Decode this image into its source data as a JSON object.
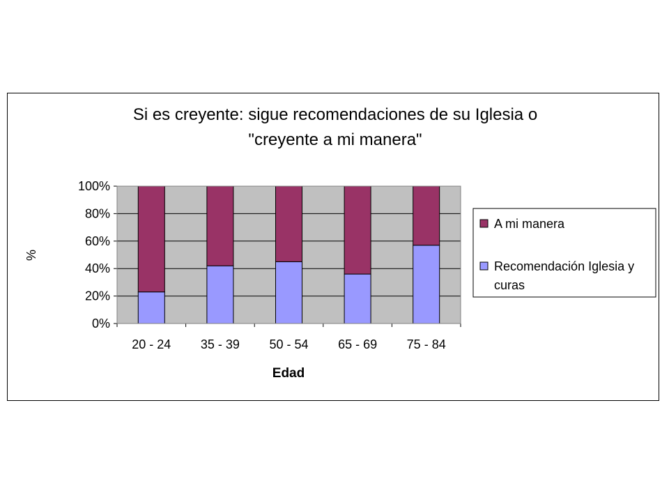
{
  "chart_data": {
    "type": "bar",
    "stacked": true,
    "percent": true,
    "title": [
      "Si es creyente: sigue recomendaciones de su Iglesia o",
      "\"creyente a mi manera\""
    ],
    "xlabel": "Edad",
    "ylabel": "%",
    "categories": [
      "20 - 24",
      "35 - 39",
      "50 - 54",
      "65 - 69",
      "75 - 84"
    ],
    "series": [
      {
        "name": "Recomendación Iglesia y curas",
        "color": "#9999ff",
        "values": [
          23,
          42,
          45,
          36,
          57
        ]
      },
      {
        "name": "A mi manera",
        "color": "#993366",
        "values": [
          77,
          58,
          55,
          64,
          43
        ]
      }
    ],
    "y_ticks": [
      "0%",
      "20%",
      "40%",
      "60%",
      "80%",
      "100%"
    ],
    "ylim": [
      0,
      100
    ],
    "grid": true,
    "plot_background": "#c0c0c0",
    "legend": {
      "position": "right",
      "entries": [
        {
          "lines": [
            "A mi manera"
          ],
          "color": "#993366"
        },
        {
          "lines": [
            "Recomendación Iglesia y",
            "curas"
          ],
          "color": "#9999ff"
        }
      ]
    }
  }
}
